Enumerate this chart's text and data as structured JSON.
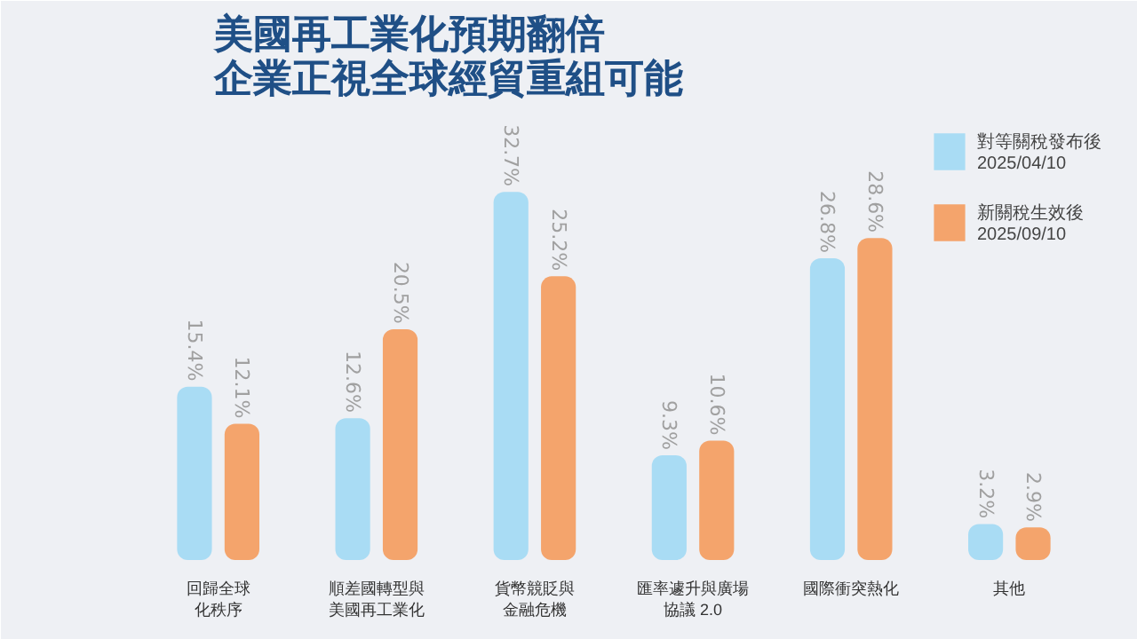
{
  "chart_data": {
    "type": "bar",
    "title": "美國再工業化預期翻倍",
    "subtitle": "企業正視全球經貿重組可能",
    "categories": [
      "回歸全球化秩序",
      "順差國轉型與美國再工業化",
      "貨幣競貶與金融危機",
      "匯率遽升與廣場協議 2.0",
      "國際衝突熱化",
      "其他"
    ],
    "series": [
      {
        "name": "對等關稅發布後\n2025/04/10",
        "color": "#a9dcf4",
        "values": [
          15.4,
          12.6,
          32.7,
          9.3,
          26.8,
          3.2
        ],
        "value_labels": [
          "15.4%",
          "12.6%",
          "32.7%",
          "9.3%",
          "26.8%",
          "3.2%"
        ]
      },
      {
        "name": "新關稅生效後\n2025/09/10",
        "color": "#f4a46c",
        "values": [
          12.1,
          20.5,
          25.2,
          10.6,
          28.6,
          2.9
        ],
        "value_labels": [
          "12.1%",
          "20.5%",
          "25.2%",
          "10.6%",
          "28.6%",
          "2.9%"
        ]
      }
    ],
    "legend": "top right",
    "grid": false
  }
}
